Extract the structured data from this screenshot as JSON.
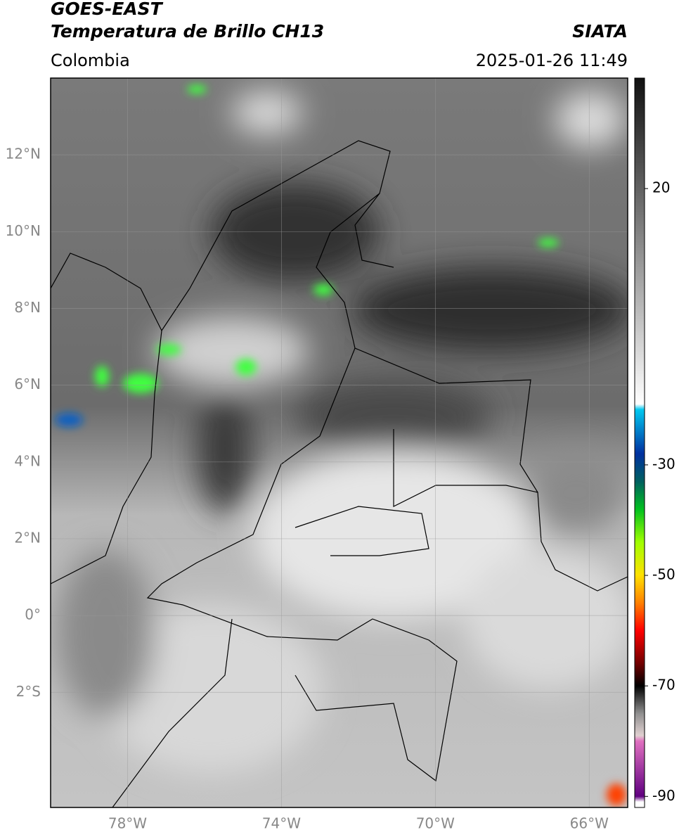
{
  "chart_data": {
    "type": "map",
    "title": "GOES-EAST",
    "subtitle": "Temperatura de Brillo CH13",
    "source": "SIATA",
    "region": "Colombia",
    "date": "2025-01-26 11:49",
    "xlim": [
      -80,
      -65
    ],
    "ylim": [
      -5,
      14
    ],
    "xticks": [
      {
        "value": -78,
        "label": "78°W"
      },
      {
        "value": -74,
        "label": "74°W"
      },
      {
        "value": -70,
        "label": "70°W"
      },
      {
        "value": -66,
        "label": "66°W"
      }
    ],
    "yticks": [
      {
        "value": 12,
        "label": "12°N"
      },
      {
        "value": 10,
        "label": "10°N"
      },
      {
        "value": 8,
        "label": "8°N"
      },
      {
        "value": 6,
        "label": "6°N"
      },
      {
        "value": 4,
        "label": "4°N"
      },
      {
        "value": 2,
        "label": "2°N"
      },
      {
        "value": 0,
        "label": "0°"
      },
      {
        "value": -2,
        "label": "2°S"
      }
    ],
    "grid": true,
    "colorbar": {
      "lim": [
        -92,
        40
      ],
      "ticks": [
        20,
        -30,
        -50,
        -70,
        -90
      ],
      "stops": [
        {
          "value": 40,
          "color": "#111111"
        },
        {
          "value": -19,
          "color": "#ffffff"
        },
        {
          "value": -20,
          "color": "#00c8f0"
        },
        {
          "value": -28,
          "color": "#0030a0"
        },
        {
          "value": -33,
          "color": "#006060"
        },
        {
          "value": -38,
          "color": "#00c020"
        },
        {
          "value": -44,
          "color": "#a0ff00"
        },
        {
          "value": -50,
          "color": "#ffe000"
        },
        {
          "value": -55,
          "color": "#ff8000"
        },
        {
          "value": -60,
          "color": "#ff0000"
        },
        {
          "value": -66,
          "color": "#700000"
        },
        {
          "value": -70,
          "color": "#000000"
        },
        {
          "value": -75,
          "color": "#909090"
        },
        {
          "value": -79,
          "color": "#e0d0d0"
        },
        {
          "value": -80,
          "color": "#e070c0"
        },
        {
          "value": -90,
          "color": "#600080"
        },
        {
          "value": -91,
          "color": "#ffffff"
        }
      ]
    }
  }
}
